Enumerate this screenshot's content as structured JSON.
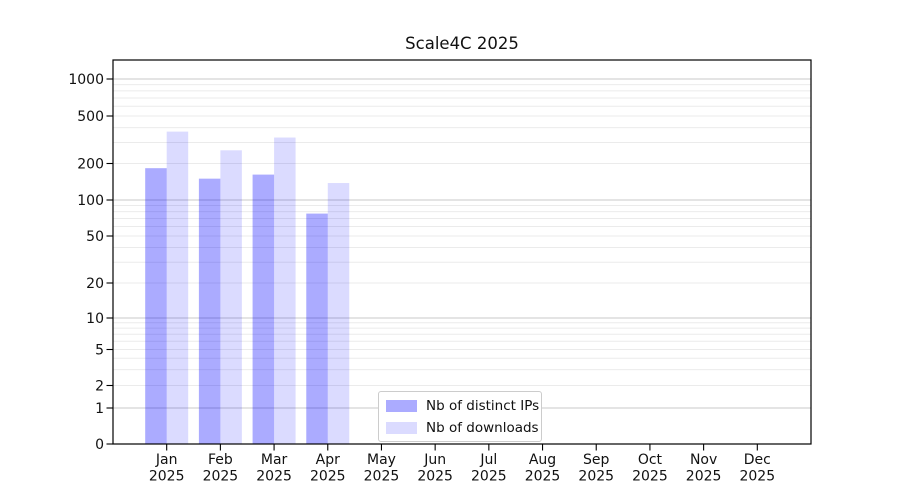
{
  "chart_data": {
    "type": "bar",
    "title": "Scale4C 2025",
    "categories": [
      "Jan 2025",
      "Feb 2025",
      "Mar 2025",
      "Apr 2025",
      "May 2025",
      "Jun 2025",
      "Jul 2025",
      "Aug 2025",
      "Sep 2025",
      "Oct 2025",
      "Nov 2025",
      "Dec 2025"
    ],
    "month_labels": [
      "Jan",
      "Feb",
      "Mar",
      "Apr",
      "May",
      "Jun",
      "Jul",
      "Aug",
      "Sep",
      "Oct",
      "Nov",
      "Dec"
    ],
    "year_label": "2025",
    "series": [
      {
        "name": "Nb of distinct IPs",
        "color": "#0000FF54",
        "values": [
          183,
          150,
          162,
          77,
          null,
          null,
          null,
          null,
          null,
          null,
          null,
          null
        ]
      },
      {
        "name": "Nb of downloads",
        "color": "#0000FF24",
        "values": [
          370,
          258,
          330,
          138,
          null,
          null,
          null,
          null,
          null,
          null,
          null,
          null
        ]
      }
    ],
    "y_ticks": [
      0,
      1,
      2,
      5,
      10,
      20,
      50,
      100,
      200,
      500,
      1000
    ],
    "y_scale": "symlog",
    "ylim": [
      0,
      1500
    ],
    "xlabel": "",
    "ylabel": "",
    "grid": {
      "on": true,
      "orientation": "horizontal",
      "major_color": "#c8c8c8",
      "minor_color": "#ebebeb"
    },
    "axis_color": "#000000",
    "legend": {
      "position": "lower-center",
      "border_color": "#cccccc"
    }
  }
}
